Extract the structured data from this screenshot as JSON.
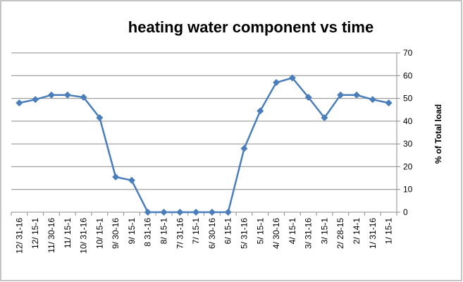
{
  "chart_data": {
    "type": "line",
    "title": "heating water component vs time",
    "y_label": "% of Total load",
    "categories": [
      "12/ 31-16",
      "12/ 15-1",
      "11/ 30-16",
      "11/ 15-1",
      "10/ 31-16",
      "10/ 15-1",
      "9/ 30-16",
      "9/ 15-1",
      "8 31-16",
      "8/ 15-1",
      "7/ 31-16",
      "7/ 15-1",
      "6/ 30-16",
      "6/ 15-1",
      "5/ 31-16",
      "5/ 15-1",
      "4/ 30-16",
      "4/ 15-1",
      "3/ 31-16",
      "3/ 15-1",
      "2/ 28-15",
      "2/ 14-1",
      "1/ 31-16",
      "1/ 15-1"
    ],
    "values": [
      48,
      49.5,
      51.5,
      51.5,
      50.5,
      41.5,
      15.5,
      14,
      0,
      0,
      0,
      0,
      0,
      0,
      28,
      44.5,
      57,
      59,
      50.5,
      41.5,
      51.5,
      51.5,
      49.5,
      48
    ],
    "color": "#4a7ebb",
    "ylim": [
      0,
      70
    ],
    "yticks": [
      0,
      10,
      20,
      30,
      40,
      50,
      60,
      70
    ],
    "grid": true,
    "y_axis_side": "right"
  }
}
